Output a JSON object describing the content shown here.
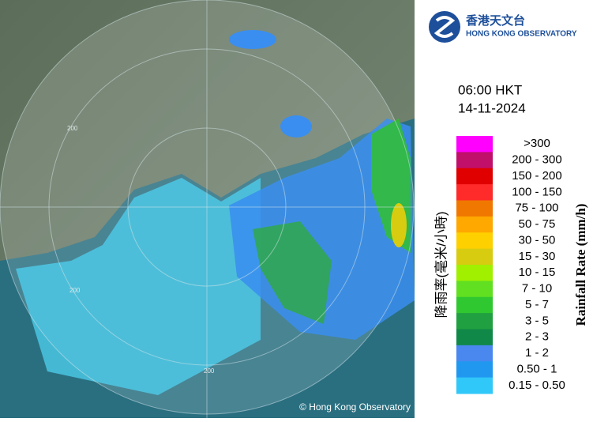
{
  "header": {
    "logo_chinese": "香港天文台",
    "logo_english": "HONG KONG OBSERVATORY"
  },
  "time": "06:00 HKT",
  "date": "14-11-2024",
  "legend": {
    "title_chinese": "降雨率(毫米/小時)",
    "title_english": "Rainfall Rate (mm/h)",
    "items": [
      {
        "label": ">300",
        "color": "#ff00ff"
      },
      {
        "label": "200 - 300",
        "color": "#c0106a"
      },
      {
        "label": "150 - 200",
        "color": "#e00000"
      },
      {
        "label": "100 - 150",
        "color": "#ff2a2a"
      },
      {
        "label": "75 - 100",
        "color": "#f07800"
      },
      {
        "label": "50 - 75",
        "color": "#ffa800"
      },
      {
        "label": "30 - 50",
        "color": "#ffd000"
      },
      {
        "label": "15 - 30",
        "color": "#d8cc10"
      },
      {
        "label": "10 - 15",
        "color": "#a0f000"
      },
      {
        "label": "7 - 10",
        "color": "#60e020"
      },
      {
        "label": "5 - 7",
        "color": "#30c830"
      },
      {
        "label": "3 - 5",
        "color": "#20a040"
      },
      {
        "label": "2 - 3",
        "color": "#108848"
      },
      {
        "label": "1 - 2",
        "color": "#4a88f0"
      },
      {
        "label": "0.50 - 1",
        "color": "#2098f0"
      },
      {
        "label": "0.15 - 0.50",
        "color": "#30c8f8"
      }
    ]
  },
  "map": {
    "ring_labels": [
      "200",
      "200",
      "200"
    ],
    "copyright": "© Hong Kong Observatory"
  }
}
